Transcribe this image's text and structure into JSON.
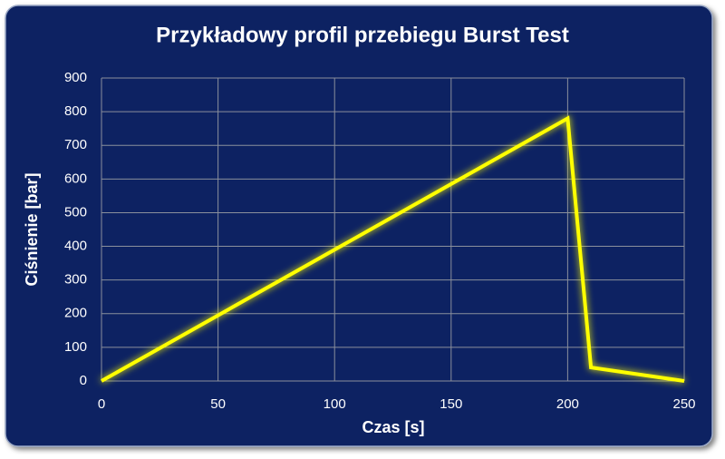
{
  "chart_data": {
    "type": "line",
    "title": "Przykładowy profil przebiegu Burst Test",
    "x_label": "Czas [s]",
    "y_label": "Ciśnienie [bar]",
    "x": [
      0,
      200,
      210,
      250
    ],
    "series": [
      {
        "name": "Ciśnienie",
        "color": "#ffff00",
        "values": [
          0,
          780,
          40,
          0
        ]
      }
    ],
    "xlim": [
      0,
      250
    ],
    "xticks": [
      0,
      50,
      100,
      150,
      200,
      250
    ],
    "ylim": [
      0,
      900
    ],
    "yticks": [
      0,
      100,
      200,
      300,
      400,
      500,
      600,
      700,
      800,
      900
    ],
    "grid": true,
    "legend": false
  }
}
